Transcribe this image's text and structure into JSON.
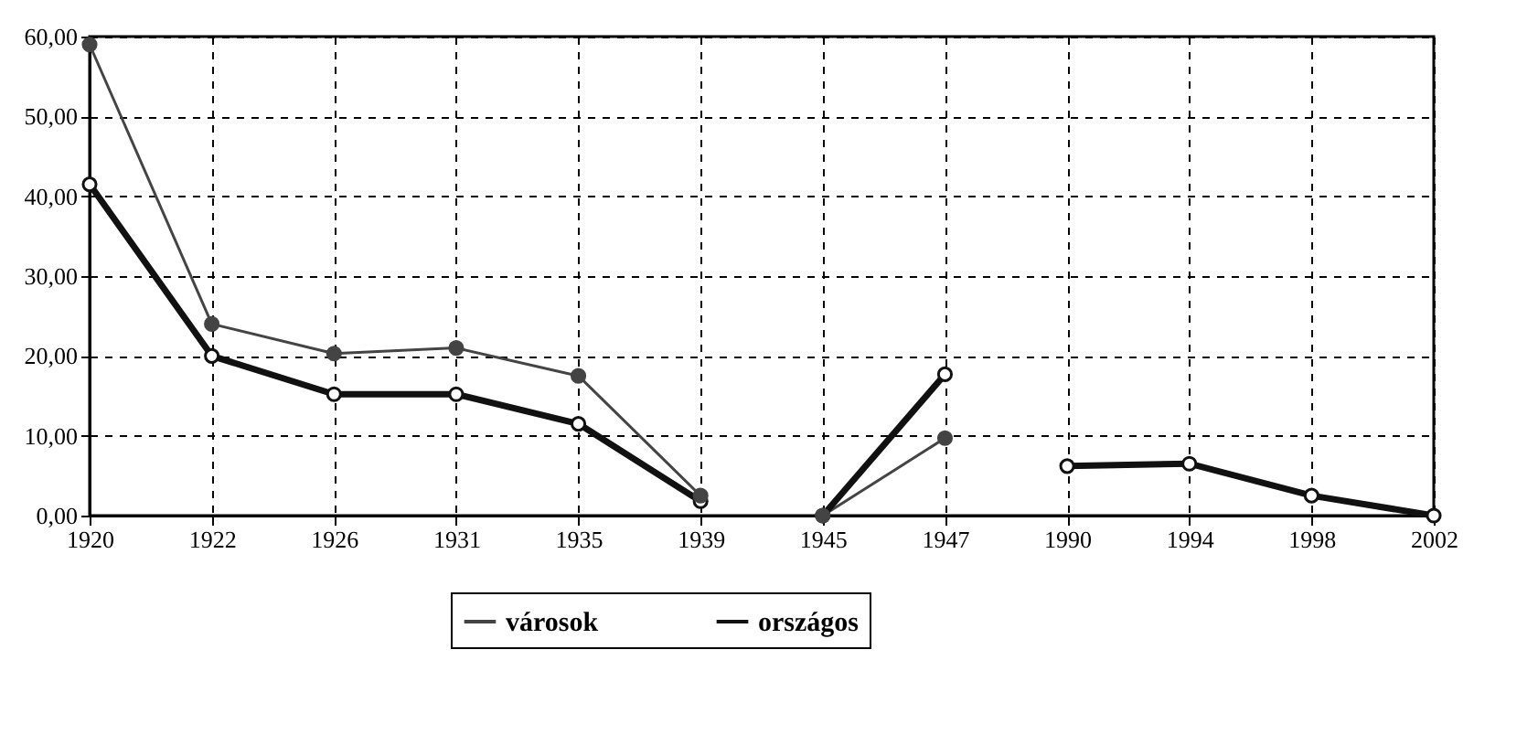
{
  "chart_data": {
    "type": "line",
    "categories": [
      "1920",
      "1922",
      "1926",
      "1931",
      "1935",
      "1939",
      "1945",
      "1947",
      "1990",
      "1994",
      "1998",
      "2002"
    ],
    "series": [
      {
        "name": "városok",
        "color": "#444444",
        "values": [
          59,
          24,
          20.3,
          21,
          17.5,
          2.5,
          null,
          null,
          null,
          null,
          null,
          null
        ]
      },
      {
        "color": "#444444",
        "values": [
          null,
          null,
          null,
          null,
          null,
          null,
          0,
          9.7,
          null,
          null,
          null,
          null
        ]
      },
      {
        "name": "országos",
        "color": "#111111",
        "values": [
          41.5,
          20,
          15.2,
          15.2,
          11.5,
          1.8,
          null,
          null,
          null,
          null,
          null,
          null
        ]
      },
      {
        "color": "#111111",
        "values": [
          null,
          null,
          null,
          null,
          null,
          null,
          0,
          17.7,
          null,
          null,
          null,
          null
        ]
      },
      {
        "color": "#111111",
        "values": [
          null,
          null,
          null,
          null,
          null,
          null,
          null,
          null,
          6.2,
          6.5,
          2.5,
          0
        ]
      }
    ],
    "ylim": [
      0,
      60
    ],
    "yticks": [
      {
        "value": 0,
        "label": "0,00"
      },
      {
        "value": 10,
        "label": "10,00"
      },
      {
        "value": 20,
        "label": "20,00"
      },
      {
        "value": 30,
        "label": "30,00"
      },
      {
        "value": 40,
        "label": "40,00"
      },
      {
        "value": 50,
        "label": "50,00"
      },
      {
        "value": 60,
        "label": "60,00"
      }
    ],
    "grid": true,
    "legend": "bottom",
    "marker": "circle"
  }
}
